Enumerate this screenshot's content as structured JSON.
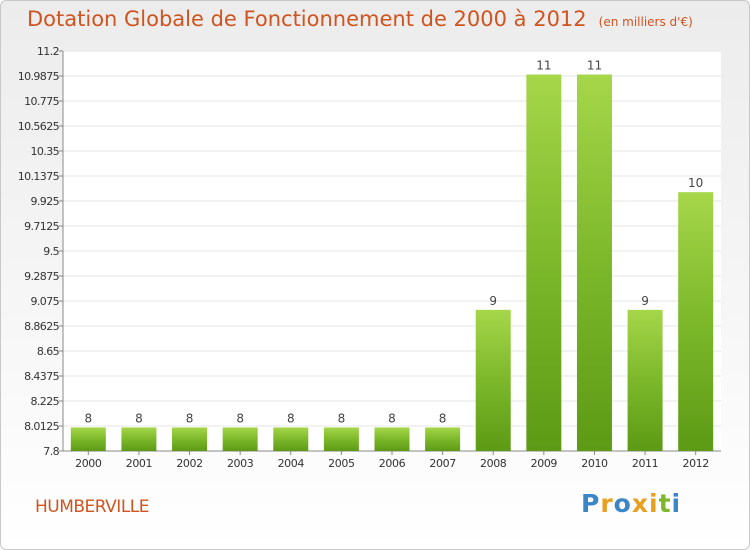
{
  "header": {
    "title": "Dotation Globale de Fonctionnement de 2000 à 2012",
    "unit": "(en milliers d'€)"
  },
  "commune": "HUMBERVILLE",
  "logo": {
    "letters": [
      "P",
      "r",
      "o",
      "x",
      "i",
      "t",
      "i"
    ],
    "colors": [
      "#3a86c8",
      "#e8a020",
      "#3a86c8",
      "#e8a020",
      "#e8a020",
      "#7cb82a",
      "#3a86c8"
    ]
  },
  "colors": {
    "bar": "#7cb82a",
    "bar_light": "#a6d64a",
    "bar_dark": "#5d9a15",
    "title": "#d0541f"
  },
  "chart_data": {
    "type": "bar",
    "title": "Dotation Globale de Fonctionnement de 2000 à 2012",
    "subtitle": "(en milliers d'€)",
    "categories": [
      "2000",
      "2001",
      "2002",
      "2003",
      "2004",
      "2005",
      "2006",
      "2007",
      "2008",
      "2009",
      "2010",
      "2011",
      "2012"
    ],
    "values": [
      8,
      8,
      8,
      8,
      8,
      8,
      8,
      8,
      9,
      11,
      11,
      9,
      10
    ],
    "value_labels": [
      "8",
      "8",
      "8",
      "8",
      "8",
      "8",
      "8",
      "8",
      "9",
      "11",
      "11",
      "9",
      "10"
    ],
    "ylim": [
      7.8,
      11.2
    ],
    "yticks": [
      "7.8",
      "8.0125",
      "8.225",
      "8.4375",
      "8.65",
      "8.8625",
      "9.075",
      "9.2875",
      "9.5",
      "9.7125",
      "9.925",
      "10.1375",
      "10.35",
      "10.5625",
      "10.775",
      "10.9875",
      "11.2"
    ],
    "grid": true,
    "xlabel": "",
    "ylabel": ""
  }
}
